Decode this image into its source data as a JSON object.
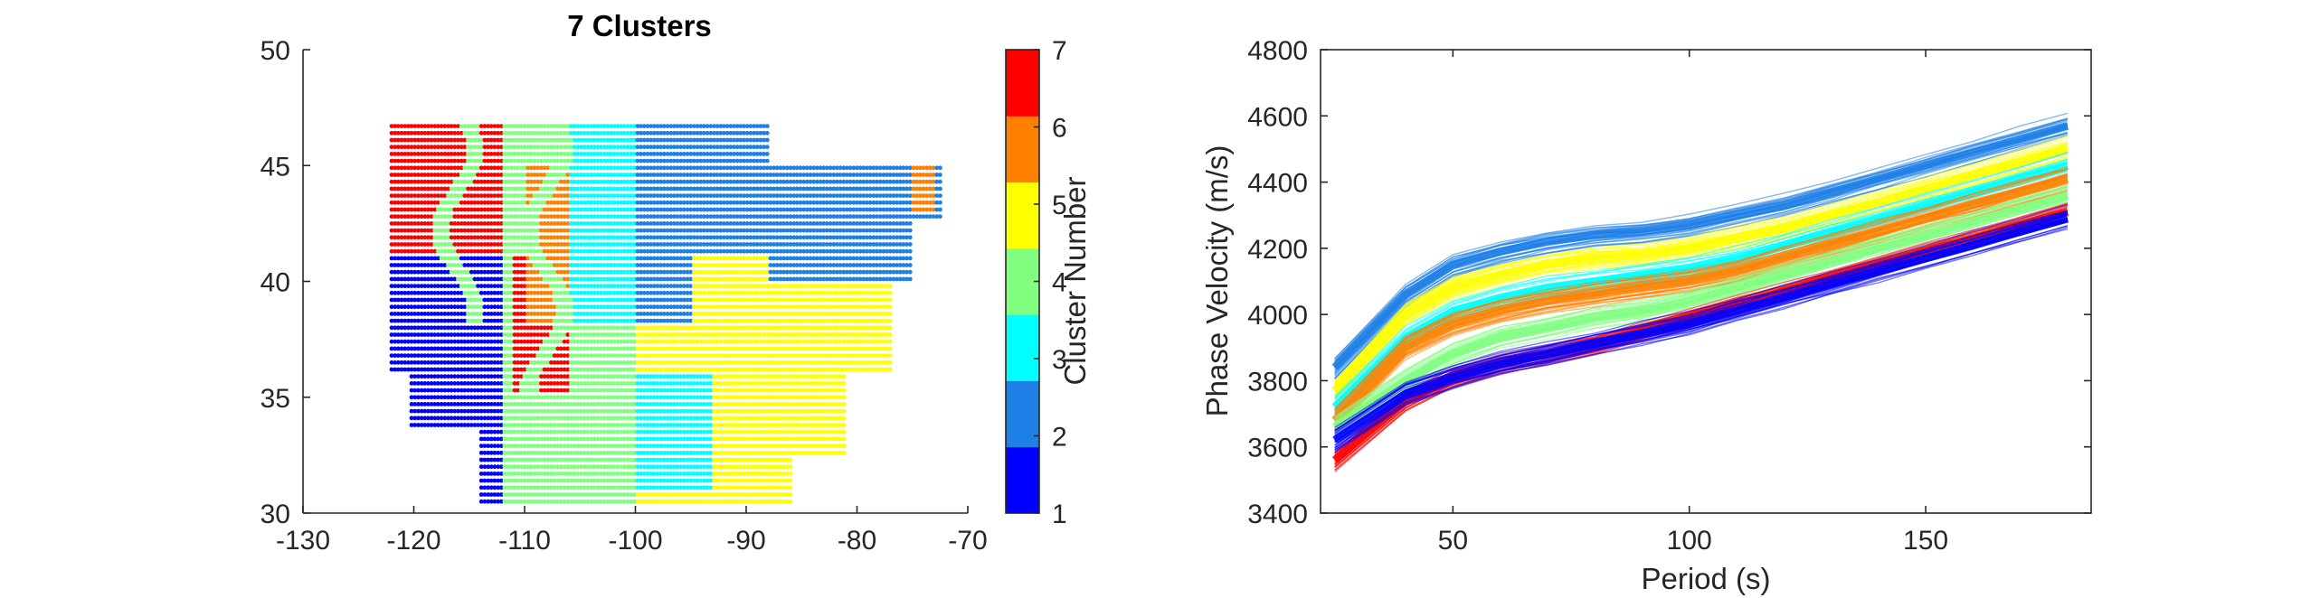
{
  "chart_data": [
    {
      "type": "scatter",
      "title": "7 Clusters",
      "xlabel": "",
      "ylabel": "",
      "xlim": [
        -130,
        -70
      ],
      "ylim": [
        30,
        50
      ],
      "xticks": [
        "-130",
        "-120",
        "-110",
        "-100",
        "-90",
        "-80",
        "-70"
      ],
      "yticks": [
        "30",
        "35",
        "40",
        "45",
        "50"
      ],
      "colorbar": {
        "label": "Cluster Number",
        "ticks": [
          "1",
          "2",
          "3",
          "4",
          "5",
          "6",
          "7"
        ],
        "colors": [
          "#0000ff",
          "#1e7fe6",
          "#00ffff",
          "#80ff80",
          "#ffff00",
          "#ff8000",
          "#ff0000"
        ]
      },
      "grid": false,
      "regions": [
        {
          "cluster": 7,
          "lon": [
            -122,
            -112
          ],
          "lat": [
            42,
            47
          ]
        },
        {
          "cluster": 1,
          "lon": [
            -122,
            -112
          ],
          "lat": [
            34,
            41
          ]
        },
        {
          "cluster": 7,
          "lon": [
            -111,
            -106
          ],
          "lat": [
            35,
            41
          ]
        },
        {
          "cluster": 6,
          "lon": [
            -110,
            -103
          ],
          "lat": [
            38,
            45
          ]
        },
        {
          "cluster": 3,
          "lon": [
            -106,
            -100
          ],
          "lat": [
            38,
            47
          ]
        },
        {
          "cluster": 2,
          "lon": [
            -100,
            -90
          ],
          "lat": [
            39,
            47
          ]
        },
        {
          "cluster": 5,
          "lon": [
            -95,
            -82
          ],
          "lat": [
            33,
            41
          ]
        },
        {
          "cluster": 3,
          "lon": [
            -100,
            -93
          ],
          "lat": [
            31,
            36
          ]
        },
        {
          "cluster": 2,
          "lon": [
            -88,
            -77
          ],
          "lat": [
            40,
            45
          ]
        },
        {
          "cluster": 6,
          "lon": [
            -75,
            -73
          ],
          "lat": [
            43,
            45
          ]
        }
      ]
    },
    {
      "type": "line",
      "title": "",
      "xlabel": "Period (s)",
      "ylabel": "Phase Velocity (m/s)",
      "xlim": [
        22,
        185
      ],
      "ylim": [
        3400,
        4800
      ],
      "xticks": [
        "50",
        "100",
        "150"
      ],
      "yticks": [
        "3400",
        "3600",
        "3800",
        "4000",
        "4200",
        "4400",
        "4600",
        "4800"
      ],
      "grid": false,
      "x": [
        25,
        40,
        50,
        60,
        70,
        80,
        90,
        100,
        110,
        120,
        130,
        140,
        150,
        160,
        170,
        180
      ],
      "series": [
        {
          "cluster": 2,
          "values": [
            3840,
            4060,
            4150,
            4190,
            4220,
            4240,
            4250,
            4270,
            4300,
            4330,
            4370,
            4410,
            4450,
            4490,
            4530,
            4570
          ]
        },
        {
          "cluster": 5,
          "values": [
            3770,
            4000,
            4080,
            4120,
            4150,
            4170,
            4180,
            4200,
            4230,
            4260,
            4300,
            4340,
            4380,
            4420,
            4460,
            4500
          ]
        },
        {
          "cluster": 3,
          "values": [
            3720,
            3930,
            4010,
            4050,
            4080,
            4100,
            4120,
            4140,
            4170,
            4210,
            4250,
            4290,
            4330,
            4370,
            4410,
            4450
          ]
        },
        {
          "cluster": 6,
          "values": [
            3680,
            3900,
            3970,
            4010,
            4040,
            4060,
            4080,
            4100,
            4130,
            4170,
            4210,
            4250,
            4290,
            4330,
            4370,
            4410
          ]
        },
        {
          "cluster": 4,
          "values": [
            3660,
            3800,
            3880,
            3930,
            3960,
            3990,
            4010,
            4040,
            4080,
            4120,
            4160,
            4200,
            4240,
            4280,
            4320,
            4360
          ]
        },
        {
          "cluster": 7,
          "values": [
            3560,
            3740,
            3810,
            3850,
            3880,
            3910,
            3950,
            3990,
            4030,
            4070,
            4110,
            4150,
            4190,
            4230,
            4270,
            4310
          ]
        },
        {
          "cluster": 1,
          "values": [
            3620,
            3760,
            3810,
            3850,
            3880,
            3910,
            3940,
            3970,
            4010,
            4050,
            4090,
            4130,
            4170,
            4210,
            4250,
            4290
          ]
        }
      ]
    }
  ]
}
